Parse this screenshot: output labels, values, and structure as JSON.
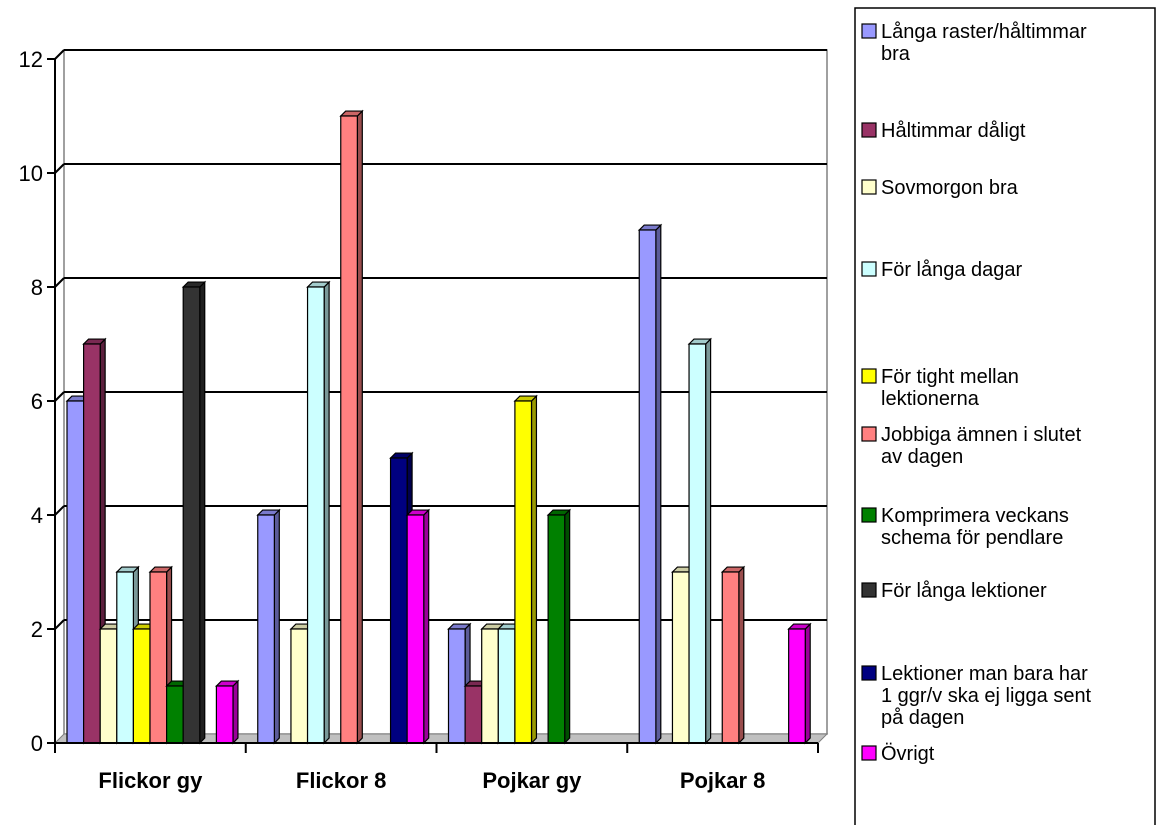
{
  "chart_data": {
    "type": "bar",
    "categories": [
      "Flickor gy",
      "Flickor 8",
      "Pojkar gy",
      "Pojkar 8"
    ],
    "ylim": [
      0,
      12
    ],
    "yticks": [
      0,
      2,
      4,
      6,
      8,
      10,
      12
    ],
    "grid": true,
    "legend_position": "right",
    "series": [
      {
        "name": "Långa raster/håltimmar bra",
        "color": "#9999FF",
        "values": [
          6,
          4,
          2,
          9
        ]
      },
      {
        "name": "Håltimmar dåligt",
        "color": "#993366",
        "values": [
          7,
          0,
          1,
          0
        ]
      },
      {
        "name": "Sovmorgon bra",
        "color": "#FFFFCC",
        "values": [
          2,
          2,
          2,
          3
        ]
      },
      {
        "name": "För långa dagar",
        "color": "#CCFFFF",
        "values": [
          3,
          8,
          2,
          7
        ]
      },
      {
        "name": "För tight mellan lektionerna",
        "color": "#FFFF00",
        "values": [
          2,
          0,
          6,
          0
        ]
      },
      {
        "name": "Jobbiga ämnen i slutet av dagen",
        "color": "#FF8080",
        "values": [
          3,
          11,
          0,
          3
        ]
      },
      {
        "name": "Komprimera veckans schema för pendlare",
        "color": "#008000",
        "values": [
          1,
          0,
          4,
          0
        ]
      },
      {
        "name": "För långa lektioner",
        "color": "#333333",
        "values": [
          8,
          0,
          0,
          0
        ]
      },
      {
        "name": "Lektioner man bara har 1 ggr/v ska ej ligga sent på dagen",
        "color": "#000080",
        "values": [
          0,
          5,
          0,
          0
        ]
      },
      {
        "name": "Övrigt",
        "color": "#FF00FF",
        "values": [
          1,
          4,
          0,
          2
        ]
      }
    ]
  }
}
